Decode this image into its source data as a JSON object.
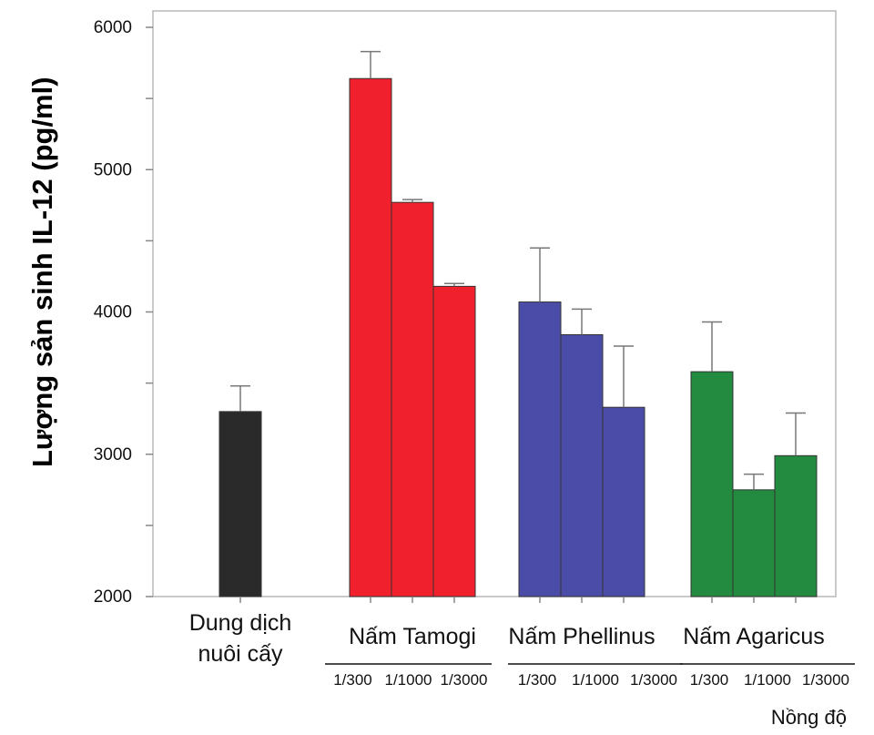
{
  "chart_data": {
    "type": "bar",
    "title": "",
    "ylabel": "Lượng sản sinh IL-12 (pg/ml)",
    "xlabel": "Nồng độ",
    "ylim": [
      2000,
      6000
    ],
    "yticks": [
      2000,
      3000,
      4000,
      5000,
      6000
    ],
    "grid": false,
    "groups": [
      {
        "label_lines": [
          "Dung dịch",
          "nuôi cấy"
        ],
        "color": "#2a2a2a",
        "bars": [
          {
            "concentration": "",
            "value": 3300,
            "error": 180
          }
        ]
      },
      {
        "label_lines": [
          "Nấm Tamogi"
        ],
        "color": "#f0202c",
        "bars": [
          {
            "concentration": "1/300",
            "value": 5640,
            "error": 190
          },
          {
            "concentration": "1/1000",
            "value": 4770,
            "error": 20
          },
          {
            "concentration": "1/3000",
            "value": 4180,
            "error": 20
          }
        ]
      },
      {
        "label_lines": [
          "Nấm Phellinus"
        ],
        "color": "#4b4ca7",
        "bars": [
          {
            "concentration": "1/300",
            "value": 4070,
            "error": 380
          },
          {
            "concentration": "1/1000",
            "value": 3840,
            "error": 180
          },
          {
            "concentration": "1/3000",
            "value": 3330,
            "error": 430
          }
        ]
      },
      {
        "label_lines": [
          "Nấm Agaricus"
        ],
        "color": "#228b3f",
        "bars": [
          {
            "concentration": "1/300",
            "value": 3580,
            "error": 350
          },
          {
            "concentration": "1/1000",
            "value": 2750,
            "error": 110
          },
          {
            "concentration": "1/3000",
            "value": 2990,
            "error": 300
          }
        ]
      }
    ]
  }
}
